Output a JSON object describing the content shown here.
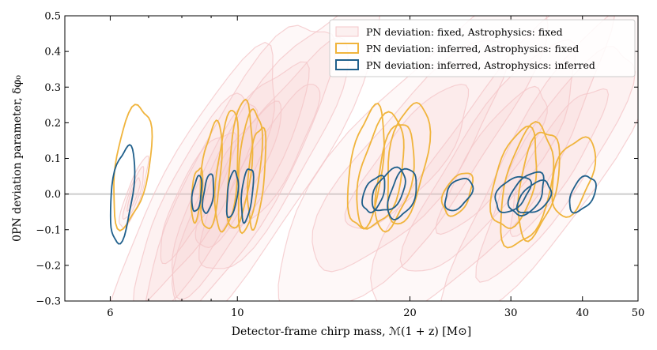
{
  "chart_data": {
    "type": "contour",
    "title": "",
    "xlabel": "Detector-frame chirp mass, ℳ(1 + z) [M⊙]",
    "ylabel": "0PN deviation parameter, δφ₀",
    "xscale": "log",
    "xlim": [
      5,
      50
    ],
    "ylim": [
      -0.3,
      0.5
    ],
    "x_ticks": [
      6,
      10,
      20,
      30,
      40,
      50
    ],
    "x_tick_labels": [
      "6",
      "10",
      "20",
      "30",
      "40",
      "50"
    ],
    "y_ticks": [
      -0.3,
      -0.2,
      -0.1,
      0.0,
      0.1,
      0.2,
      0.3,
      0.4,
      0.5
    ],
    "y_tick_labels": [
      "−0.3",
      "−0.2",
      "−0.1",
      "0.0",
      "0.1",
      "0.2",
      "0.3",
      "0.4",
      "0.5"
    ],
    "reference_line_y": 0.0,
    "colors": {
      "fixed_fixed": "#f4c7c9",
      "inferred_fixed": "#f0b43c",
      "inferred_inferred": "#1f5f8b",
      "reference_line": "#cccccc"
    },
    "legend_position": "top-right",
    "series": [
      {
        "name": "PN deviation: fixed, Astrophysics: fixed",
        "style": "filled-faint",
        "events": [
          {
            "x_center": 6.6,
            "y_center": 0.0,
            "x_width": 0.4,
            "y_height": 0.2
          },
          {
            "x_center": 8.5,
            "y_center": 0.0,
            "x_width": 3.0,
            "y_height": 0.8
          },
          {
            "x_center": 10.0,
            "y_center": 0.05,
            "x_width": 4.0,
            "y_height": 0.9
          },
          {
            "x_center": 11.5,
            "y_center": 0.1,
            "x_width": 5.0,
            "y_height": 0.9
          },
          {
            "x_center": 20.0,
            "y_center": 0.1,
            "x_width": 12.0,
            "y_height": 0.9
          },
          {
            "x_center": 28.0,
            "y_center": 0.1,
            "x_width": 14.0,
            "y_height": 0.9
          },
          {
            "x_center": 36.0,
            "y_center": 0.1,
            "x_width": 16.0,
            "y_height": 0.9
          }
        ]
      },
      {
        "name": "PN deviation: inferred, Astrophysics: fixed",
        "style": "contour",
        "events": [
          {
            "x_center": 6.55,
            "y_center": 0.08,
            "x_width": 0.9,
            "y_height": 0.34
          },
          {
            "x_center": 8.5,
            "y_center": 0.0,
            "x_width": 0.35,
            "y_height": 0.15
          },
          {
            "x_center": 9.0,
            "y_center": 0.05,
            "x_width": 0.7,
            "y_height": 0.3
          },
          {
            "x_center": 9.6,
            "y_center": 0.06,
            "x_width": 0.8,
            "y_height": 0.34
          },
          {
            "x_center": 10.1,
            "y_center": 0.08,
            "x_width": 0.9,
            "y_height": 0.36
          },
          {
            "x_center": 10.5,
            "y_center": 0.07,
            "x_width": 0.9,
            "y_height": 0.34
          },
          {
            "x_center": 10.8,
            "y_center": 0.05,
            "x_width": 0.7,
            "y_height": 0.28
          },
          {
            "x_center": 16.8,
            "y_center": 0.07,
            "x_width": 2.2,
            "y_height": 0.34
          },
          {
            "x_center": 17.8,
            "y_center": 0.06,
            "x_width": 3.0,
            "y_height": 0.32
          },
          {
            "x_center": 18.8,
            "y_center": 0.05,
            "x_width": 2.6,
            "y_height": 0.3
          },
          {
            "x_center": 19.8,
            "y_center": 0.09,
            "x_width": 3.0,
            "y_height": 0.34
          },
          {
            "x_center": 24.2,
            "y_center": 0.0,
            "x_width": 2.6,
            "y_height": 0.12
          },
          {
            "x_center": 30.5,
            "y_center": 0.04,
            "x_width": 5.0,
            "y_height": 0.28
          },
          {
            "x_center": 32.0,
            "y_center": 0.02,
            "x_width": 6.0,
            "y_height": 0.34
          },
          {
            "x_center": 33.5,
            "y_center": 0.03,
            "x_width": 5.0,
            "y_height": 0.3
          },
          {
            "x_center": 38.5,
            "y_center": 0.05,
            "x_width": 6.0,
            "y_height": 0.22
          }
        ]
      },
      {
        "name": "PN deviation: inferred, Astrophysics: inferred",
        "style": "contour",
        "events": [
          {
            "x_center": 6.3,
            "y_center": 0.0,
            "x_width": 0.55,
            "y_height": 0.27
          },
          {
            "x_center": 8.5,
            "y_center": 0.0,
            "x_width": 0.3,
            "y_height": 0.1
          },
          {
            "x_center": 8.9,
            "y_center": 0.0,
            "x_width": 0.35,
            "y_height": 0.11
          },
          {
            "x_center": 9.8,
            "y_center": 0.0,
            "x_width": 0.4,
            "y_height": 0.13
          },
          {
            "x_center": 10.4,
            "y_center": 0.0,
            "x_width": 0.45,
            "y_height": 0.15
          },
          {
            "x_center": 17.3,
            "y_center": 0.0,
            "x_width": 1.4,
            "y_height": 0.1
          },
          {
            "x_center": 18.4,
            "y_center": 0.01,
            "x_width": 2.2,
            "y_height": 0.12
          },
          {
            "x_center": 19.4,
            "y_center": 0.0,
            "x_width": 2.0,
            "y_height": 0.14
          },
          {
            "x_center": 24.3,
            "y_center": 0.0,
            "x_width": 2.4,
            "y_height": 0.09
          },
          {
            "x_center": 30.2,
            "y_center": 0.0,
            "x_width": 3.8,
            "y_height": 0.1
          },
          {
            "x_center": 32.0,
            "y_center": 0.0,
            "x_width": 4.0,
            "y_height": 0.12
          },
          {
            "x_center": 33.0,
            "y_center": -0.01,
            "x_width": 4.0,
            "y_height": 0.09
          },
          {
            "x_center": 40.0,
            "y_center": 0.0,
            "x_width": 3.8,
            "y_height": 0.1
          }
        ]
      }
    ]
  }
}
